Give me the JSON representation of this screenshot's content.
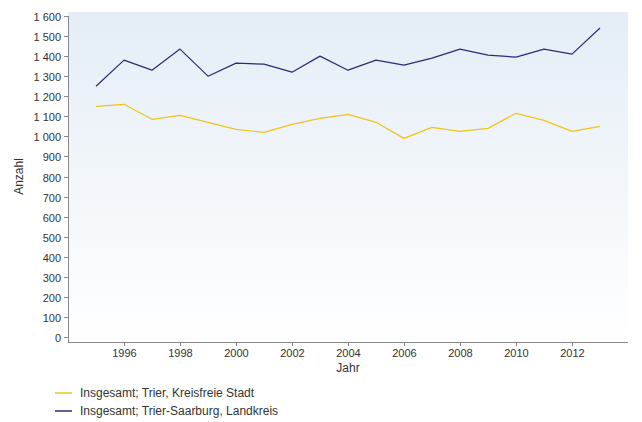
{
  "chart_data": {
    "type": "line",
    "x_label": "Jahr",
    "y_label": "Anzahl",
    "x": [
      1995,
      1996,
      1997,
      1998,
      1999,
      2000,
      2001,
      2002,
      2003,
      2004,
      2005,
      2006,
      2007,
      2008,
      2009,
      2010,
      2011,
      2012,
      2013
    ],
    "series": [
      {
        "name": "Insgesamt; Trier, Kreisfreie Stadt",
        "color": "#f0c31b",
        "values": [
          1150,
          1160,
          1085,
          1105,
          1070,
          1035,
          1020,
          1060,
          1090,
          1110,
          1070,
          990,
          1045,
          1025,
          1040,
          1115,
          1080,
          1025,
          1050
        ]
      },
      {
        "name": "Insgesamt; Trier-Saarburg, Landkreis",
        "color": "#2b2b78",
        "values": [
          1250,
          1380,
          1330,
          1435,
          1300,
          1365,
          1360,
          1320,
          1400,
          1330,
          1380,
          1355,
          1390,
          1435,
          1405,
          1395,
          1435,
          1410,
          1540
        ]
      }
    ],
    "xlim": [
      1994,
      2014
    ],
    "xticks": [
      1996,
      1998,
      2000,
      2002,
      2004,
      2006,
      2008,
      2010,
      2012
    ],
    "ylim": [
      0,
      1600
    ],
    "yticks": [
      0,
      100,
      200,
      300,
      400,
      500,
      600,
      700,
      800,
      900,
      {
        "value": 1000,
        "label": "1 000"
      },
      {
        "value": 1100,
        "label": "1 100"
      },
      {
        "value": 1200,
        "label": "1 200"
      },
      {
        "value": 1300,
        "label": "1 300"
      },
      {
        "value": 1400,
        "label": "1 400"
      },
      {
        "value": 1500,
        "label": "1 500"
      },
      {
        "value": 1600,
        "label": "1 600"
      }
    ],
    "grid": false,
    "legend": "bottom"
  }
}
